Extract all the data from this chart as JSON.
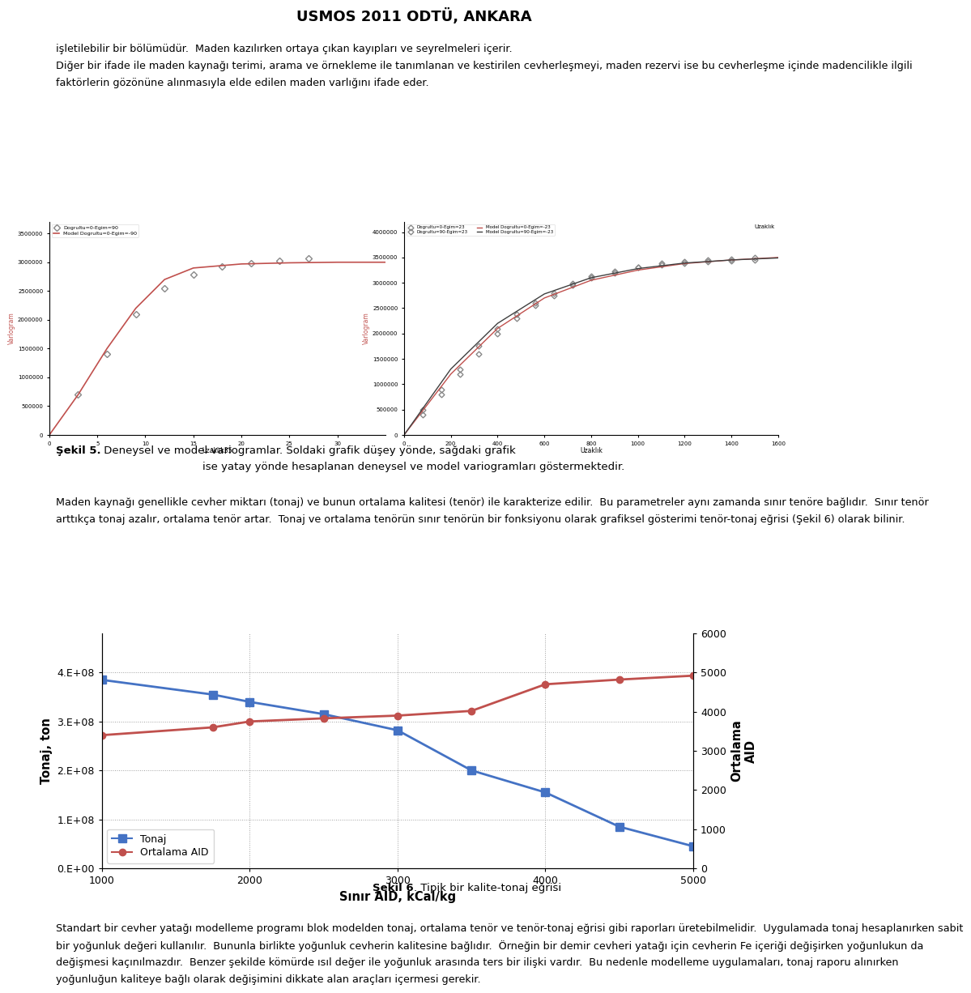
{
  "title": "USMOS 2011 ODTÜ, ANKARA",
  "p1_lines": [
    "işletilebilir bir bölümüdür.  Maden kazılırken ortaya çıkan kayıpları ve seyrelmeleri içerir.",
    "Diğer bir ifade ile maden kaynağı terimi, arama ve örnekleme ile tanımlanan ve kestirilen cevherleşmeyi, maden rezervi ise bu cevherleşme içinde madencilikle ilgili",
    "faktörlerin gözönüne alınmasıyla elde edilen maden varlığını ifade eder."
  ],
  "fig5_bold": "Şekil 5.",
  "fig5_rest": " Deneysel ve model variogramlar. Soldaki grafik düşey yönde, sağdaki grafik",
  "fig5_line2": "ise yatay yönde hesaplanan deneysel ve model variogramları göstermektedir.",
  "p2_lines": [
    "Maden kaynağı genellikle cevher miktarı (tonaj) ve bunun ortalama kalitesi (tenör) ile karakterize edilir.  Bu parametreler aynı zamanda sınır tenöre bağlıdır.  Sınır tenör",
    "arttıkça tonaj azalır, ortalama tenör artar.  Tonaj ve ortalama tenörün sınır tenörün bir fonksiyonu olarak grafiksel gösterimi tenör-tonaj eğrisi (Şekil 6) olarak bilinir."
  ],
  "fig6_bold": "Şekil 6",
  "fig6_rest": ". Tipik bir kalite-tonaj eğrisi",
  "p3_lines": [
    "Standart bir cevher yatağı modelleme programı blok modelden tonaj, ortalama tenör ve tenör-tonaj eğrisi gibi raporları üretebilmelidir.  Uygulamada tonaj hesaplanırken sabit",
    "bir yoğunluk değeri kullanılır.  Bununla birlikte yoğunluk cevherin kalitesine bağlıdır.  Örneğin bir demir cevheri yatağı için cevherin Fe içeriği değişirken yoğunlukun da",
    "değişmesi kaçınılmazdır.  Benzer şekilde kömürde ısıl değer ile yoğunluk arasında ters bir ilişki vardır.  Bu nedenle modelleme uygulamaları, tonaj raporu alınırken",
    "yoğunluğun kaliteye bağlı olarak değişimini dikkate alan araçları içermesi gerekir."
  ],
  "vl_legend1": "Dogrultu=0-Egim=90",
  "vl_legend2": "Model Dogrultu=0-Egim=-90",
  "vl_yticks": [
    0,
    500000,
    1000000,
    1500000,
    2000000,
    2500000,
    3000000,
    3500000
  ],
  "vl_ytick_labels": [
    "0",
    "500000",
    "1000000",
    "1500000",
    "2000000",
    "2500000",
    "3000000",
    "3500000"
  ],
  "vl_xticks": [
    0,
    5,
    10,
    15,
    20,
    25,
    30
  ],
  "vl_xlim": [
    0,
    35
  ],
  "vl_ylim": [
    0,
    3700000
  ],
  "vl_exp_x": [
    3,
    6,
    9,
    12,
    15,
    18,
    21,
    24,
    27
  ],
  "vl_exp_y": [
    700000,
    1400000,
    2100000,
    2550000,
    2780000,
    2920000,
    2980000,
    3020000,
    3060000
  ],
  "vl_model_x": [
    0,
    3,
    6,
    9,
    12,
    15,
    20,
    25,
    30,
    35
  ],
  "vl_model_y": [
    0,
    700000,
    1500000,
    2200000,
    2700000,
    2900000,
    2970000,
    2990000,
    3000000,
    3000000
  ],
  "vr_legend1": "Dogrultu=0-Egim=23",
  "vr_legend2": "Dogrultu=90-Egim=23",
  "vr_legend3": "Model Dogrultu=0-Egim=-23",
  "vr_legend4": "Model Dogrultu=90-Egim=-23",
  "vr_yticks": [
    0,
    500000,
    1000000,
    1500000,
    2000000,
    2500000,
    3000000,
    3500000,
    4000000
  ],
  "vr_ytick_labels": [
    "0",
    "500000",
    "1000000",
    "1500000",
    "2000000",
    "2500000",
    "3000000",
    "3500000",
    "4000000"
  ],
  "vr_xticks": [
    0,
    200,
    400,
    600,
    800,
    1000,
    1200,
    1400,
    1600
  ],
  "vr_xlim": [
    0,
    1600
  ],
  "vr_ylim": [
    0,
    4200000
  ],
  "vr_exp1_x": [
    80,
    160,
    240,
    320,
    400,
    480,
    560,
    640,
    720,
    800,
    900,
    1000,
    1100,
    1200,
    1300,
    1400,
    1500
  ],
  "vr_exp1_y": [
    400000,
    800000,
    1200000,
    1600000,
    2000000,
    2300000,
    2550000,
    2750000,
    2950000,
    3100000,
    3200000,
    3300000,
    3380000,
    3420000,
    3450000,
    3470000,
    3490000
  ],
  "vr_exp2_x": [
    80,
    160,
    240,
    320,
    400,
    480,
    560,
    640,
    720,
    800,
    900,
    1000,
    1100,
    1200,
    1300,
    1400,
    1500
  ],
  "vr_exp2_y": [
    500000,
    900000,
    1300000,
    1750000,
    2100000,
    2380000,
    2600000,
    2800000,
    2990000,
    3130000,
    3220000,
    3300000,
    3360000,
    3390000,
    3410000,
    3430000,
    3450000
  ],
  "vr_model1_x": [
    0,
    100,
    200,
    400,
    600,
    800,
    1000,
    1200,
    1400,
    1600
  ],
  "vr_model1_y": [
    0,
    600000,
    1200000,
    2100000,
    2700000,
    3050000,
    3250000,
    3380000,
    3450000,
    3500000
  ],
  "vr_model2_x": [
    0,
    100,
    200,
    400,
    600,
    800,
    1000,
    1200,
    1400,
    1600
  ],
  "vr_model2_y": [
    0,
    650000,
    1300000,
    2200000,
    2780000,
    3100000,
    3280000,
    3390000,
    3450000,
    3490000
  ],
  "t_x": [
    1000,
    1750,
    2000,
    2500,
    3000,
    3500,
    4000,
    4500,
    5000
  ],
  "t_tonaj_y": [
    385000000.0,
    355000000.0,
    340000000.0,
    315000000.0,
    282000000.0,
    200000000.0,
    155000000.0,
    85000000.0,
    45000000.0
  ],
  "t_aid_y": [
    3400,
    3600,
    3750,
    3830,
    3900,
    4020,
    4700,
    4820,
    4920
  ],
  "t_tonaj_color": "#4472C4",
  "t_aid_color": "#C0504D",
  "t_xticks": [
    1000,
    2000,
    3000,
    4000,
    5000
  ],
  "t_yticks_left": [
    0.0,
    100000000.0,
    200000000.0,
    300000000.0,
    400000000.0
  ],
  "t_ytick_labels_left": [
    "0.E+00",
    "1.E+08",
    "2.E+08",
    "3.E+08",
    "4.E+08"
  ],
  "t_yticks_right": [
    0,
    1000,
    2000,
    3000,
    4000,
    5000,
    6000
  ],
  "t_xlabel": "Sınır AID, kCal/kg",
  "t_ylabel_left": "Tonaj, ton",
  "t_ylabel_right_line1": "Ortalama",
  "t_ylabel_right_line2": "AID"
}
